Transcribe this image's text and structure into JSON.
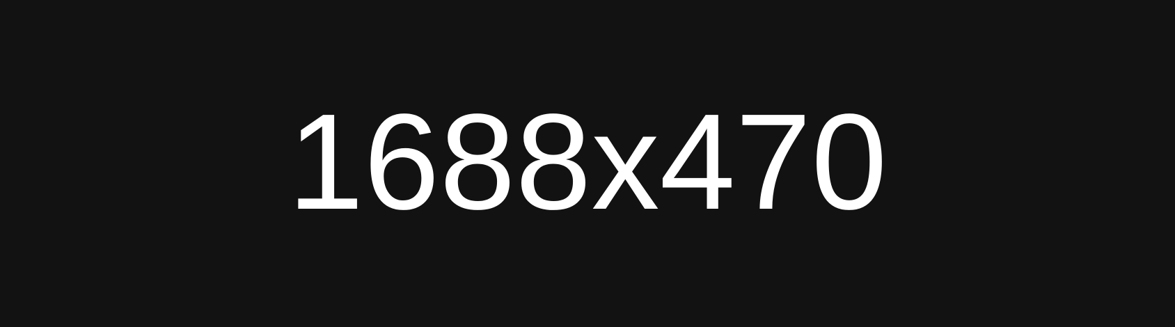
{
  "display": {
    "text": "1688x470"
  },
  "colors": {
    "background": "#121212",
    "text": "#ffffff"
  }
}
